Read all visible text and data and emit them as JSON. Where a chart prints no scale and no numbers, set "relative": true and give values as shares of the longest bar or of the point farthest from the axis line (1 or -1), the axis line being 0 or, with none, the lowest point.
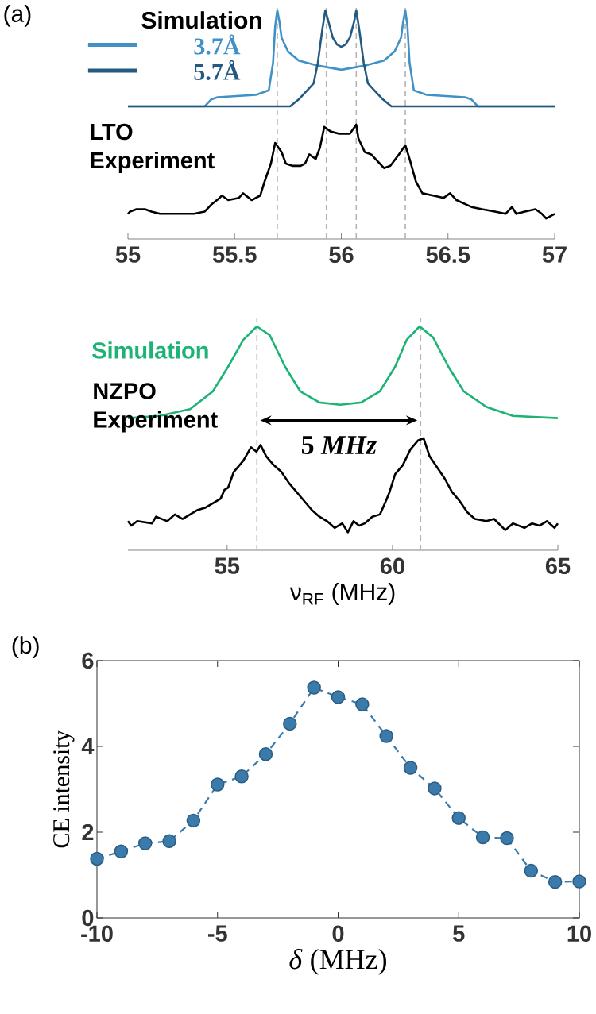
{
  "chart_data": [
    {
      "type": "line",
      "relative": true,
      "xlim": [
        55,
        57
      ],
      "xticks": [
        55,
        55.5,
        56,
        56.5,
        57
      ],
      "tick_labels": "x",
      "legend": "top left",
      "legend_title": "Simulation",
      "annotations": [
        "(a)"
      ],
      "ref_lines": [
        {
          "axis": "x",
          "value": 55.7,
          "color": "#b4b4b4",
          "line_style": "dashed"
        },
        {
          "axis": "x",
          "value": 55.93,
          "color": "#b4b4b4",
          "line_style": "dashed"
        },
        {
          "axis": "x",
          "value": 56.07,
          "color": "#b4b4b4",
          "line_style": "dashed"
        },
        {
          "axis": "x",
          "value": 56.3,
          "color": "#b4b4b4",
          "line_style": "dashed"
        }
      ],
      "series": [
        {
          "name": "3.7Å",
          "color": "#4092c6",
          "x": [
            55.0,
            55.36,
            55.39,
            55.42,
            55.6,
            55.66,
            55.68,
            55.69,
            55.7,
            55.71,
            55.72,
            55.75,
            55.8,
            55.88,
            56.0,
            56.12,
            56.2,
            56.25,
            56.28,
            56.29,
            56.3,
            56.31,
            56.32,
            56.34,
            56.4,
            56.58,
            56.61,
            56.64,
            57.0
          ],
          "values": [
            0.58,
            0.58,
            0.61,
            0.62,
            0.63,
            0.65,
            0.77,
            0.93,
            1.0,
            0.95,
            0.88,
            0.82,
            0.78,
            0.76,
            0.74,
            0.76,
            0.78,
            0.82,
            0.88,
            0.95,
            1.0,
            0.93,
            0.77,
            0.65,
            0.63,
            0.62,
            0.61,
            0.58,
            0.58
          ]
        },
        {
          "name": "5.7Å",
          "color": "#255a80",
          "x": [
            55.0,
            55.76,
            55.8,
            55.84,
            55.87,
            55.89,
            55.91,
            55.925,
            55.94,
            55.96,
            55.98,
            56.0,
            56.02,
            56.04,
            56.06,
            56.07,
            56.085,
            56.105,
            56.125,
            56.155,
            56.195,
            56.235,
            57.0
          ],
          "values": [
            0.58,
            0.58,
            0.61,
            0.65,
            0.68,
            0.77,
            0.91,
            1.0,
            0.95,
            0.88,
            0.85,
            0.84,
            0.85,
            0.88,
            0.95,
            1.0,
            0.91,
            0.77,
            0.68,
            0.65,
            0.61,
            0.58,
            0.58
          ]
        },
        {
          "name": "LTO Experiment",
          "color": "#000000",
          "x": [
            55.0,
            55.01,
            55.04,
            55.08,
            55.11,
            55.15,
            55.2,
            55.26,
            55.31,
            55.36,
            55.39,
            55.43,
            55.44,
            55.47,
            55.52,
            55.54,
            55.58,
            55.62,
            55.64,
            55.67,
            55.69,
            55.72,
            55.74,
            55.77,
            55.81,
            55.83,
            55.85,
            55.88,
            55.9,
            55.92,
            55.95,
            55.99,
            56.01,
            56.04,
            56.07,
            56.08,
            56.11,
            56.14,
            56.16,
            56.2,
            56.23,
            56.27,
            56.3,
            56.32,
            56.35,
            56.38,
            56.43,
            56.48,
            56.51,
            56.54,
            56.61,
            56.66,
            56.72,
            56.77,
            56.8,
            56.82,
            56.86,
            56.91,
            56.94,
            56.96,
            57.0
          ],
          "values": [
            0.11,
            0.12,
            0.13,
            0.13,
            0.12,
            0.11,
            0.11,
            0.11,
            0.11,
            0.12,
            0.15,
            0.18,
            0.19,
            0.17,
            0.18,
            0.2,
            0.17,
            0.19,
            0.25,
            0.33,
            0.42,
            0.38,
            0.33,
            0.32,
            0.32,
            0.33,
            0.37,
            0.35,
            0.4,
            0.49,
            0.47,
            0.46,
            0.46,
            0.46,
            0.5,
            0.44,
            0.38,
            0.37,
            0.35,
            0.31,
            0.32,
            0.37,
            0.41,
            0.35,
            0.25,
            0.2,
            0.19,
            0.18,
            0.2,
            0.17,
            0.14,
            0.13,
            0.12,
            0.11,
            0.14,
            0.11,
            0.12,
            0.13,
            0.11,
            0.09,
            0.11
          ]
        }
      ]
    },
    {
      "type": "line",
      "relative": true,
      "xlim": [
        52,
        65
      ],
      "xticks": [
        55,
        60,
        65
      ],
      "tick_labels": "x",
      "xlabel": "ν$_{RF}$ (MHz)",
      "annotations": [
        "5 *MHz*"
      ],
      "ref_lines": [
        {
          "axis": "x",
          "value": 55.9,
          "color": "#b4b4b4",
          "line_style": "dashed"
        },
        {
          "axis": "x",
          "value": 60.85,
          "color": "#b4b4b4",
          "line_style": "dashed"
        }
      ],
      "series": [
        {
          "name": "Simulation",
          "color": "#1db374",
          "x": [
            52.0,
            52.96,
            53.88,
            54.57,
            55.03,
            55.49,
            55.9,
            56.29,
            56.75,
            57.21,
            57.79,
            58.42,
            59.05,
            59.62,
            60.08,
            60.43,
            60.82,
            61.23,
            61.69,
            62.15,
            62.84,
            63.64,
            65.0
          ],
          "values": [
            0.59,
            0.6,
            0.63,
            0.71,
            0.82,
            0.94,
            1.0,
            0.96,
            0.82,
            0.71,
            0.66,
            0.65,
            0.66,
            0.71,
            0.82,
            0.94,
            1.0,
            0.95,
            0.82,
            0.71,
            0.64,
            0.6,
            0.59
          ]
        },
        {
          "name": "NZPO Experiment",
          "color": "#000000",
          "x": [
            52.0,
            52.1,
            52.28,
            52.73,
            52.85,
            53.19,
            53.42,
            53.65,
            53.88,
            54.11,
            54.34,
            54.57,
            54.8,
            54.92,
            55.03,
            55.2,
            55.49,
            55.72,
            55.89,
            56.01,
            56.18,
            56.41,
            56.64,
            56.87,
            57.1,
            57.33,
            57.56,
            57.79,
            58.02,
            58.25,
            58.48,
            58.65,
            58.82,
            58.99,
            59.16,
            59.39,
            59.62,
            59.8,
            59.91,
            60.08,
            60.31,
            60.54,
            60.77,
            60.94,
            61.12,
            61.35,
            61.58,
            61.8,
            62.03,
            62.26,
            62.49,
            62.84,
            63.07,
            63.41,
            63.64,
            63.99,
            64.22,
            64.45,
            64.67,
            64.9,
            65.0
          ],
          "values": [
            0.13,
            0.11,
            0.13,
            0.12,
            0.15,
            0.13,
            0.16,
            0.14,
            0.16,
            0.18,
            0.19,
            0.21,
            0.23,
            0.27,
            0.28,
            0.35,
            0.4,
            0.46,
            0.44,
            0.47,
            0.42,
            0.38,
            0.35,
            0.3,
            0.26,
            0.22,
            0.18,
            0.15,
            0.13,
            0.1,
            0.12,
            0.08,
            0.13,
            0.11,
            0.12,
            0.15,
            0.16,
            0.22,
            0.26,
            0.34,
            0.38,
            0.45,
            0.49,
            0.5,
            0.42,
            0.37,
            0.32,
            0.26,
            0.22,
            0.17,
            0.14,
            0.13,
            0.14,
            0.09,
            0.12,
            0.1,
            0.12,
            0.11,
            0.13,
            0.1,
            0.12
          ]
        }
      ]
    },
    {
      "type": "line",
      "marker": "circle",
      "line_style": "dashed",
      "color": "#3a7bab",
      "xlim": [
        -10,
        10
      ],
      "ylim": [
        0,
        6
      ],
      "xticks": [
        -10,
        -5,
        0,
        5,
        10
      ],
      "yticks": [
        0,
        2,
        4,
        6
      ],
      "xlabel": "*δ* (MHz)",
      "ylabel": "CE intensity",
      "annotations": [
        "(b)"
      ],
      "x": [
        -10,
        -9,
        -8,
        -7,
        -6,
        -5,
        -4,
        -3,
        -2,
        -1,
        0,
        1,
        2,
        3,
        4,
        5,
        6,
        7,
        8,
        9,
        10
      ],
      "values": [
        1.38,
        1.55,
        1.74,
        1.79,
        2.27,
        3.11,
        3.3,
        3.82,
        4.53,
        5.37,
        5.15,
        4.98,
        4.24,
        3.5,
        3.02,
        2.33,
        1.88,
        1.86,
        1.1,
        0.84,
        0.85
      ]
    }
  ]
}
